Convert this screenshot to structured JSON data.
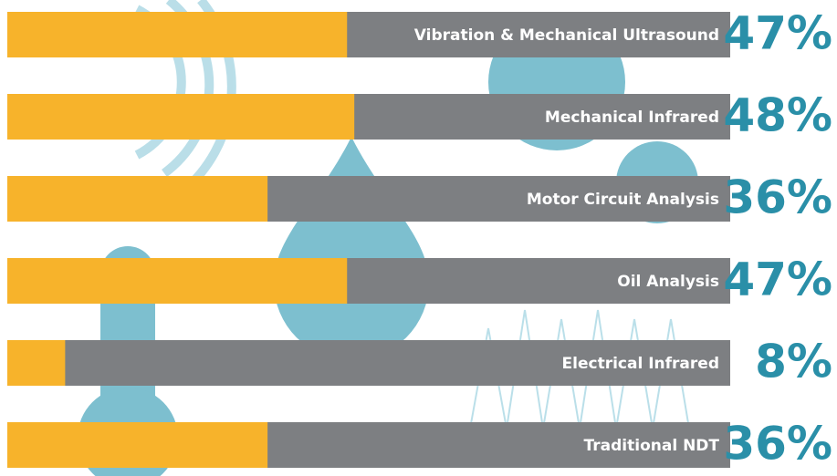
{
  "chart_data": {
    "type": "bar",
    "orientation": "horizontal",
    "categories": [
      "Vibration & Mechanical Ultrasound",
      "Mechanical Infrared",
      "Motor Circuit Analysis",
      "Oil Analysis",
      "Electrical Infrared",
      "Traditional NDT"
    ],
    "values": [
      47,
      48,
      36,
      47,
      8,
      36
    ],
    "value_labels": [
      "47%",
      "48%",
      "36%",
      "47%",
      "8%",
      "36%"
    ],
    "color": "#f7b32b",
    "track_color": "#7d7f82",
    "label_color": "#2a8fa8",
    "xlim": [
      0,
      100
    ]
  }
}
